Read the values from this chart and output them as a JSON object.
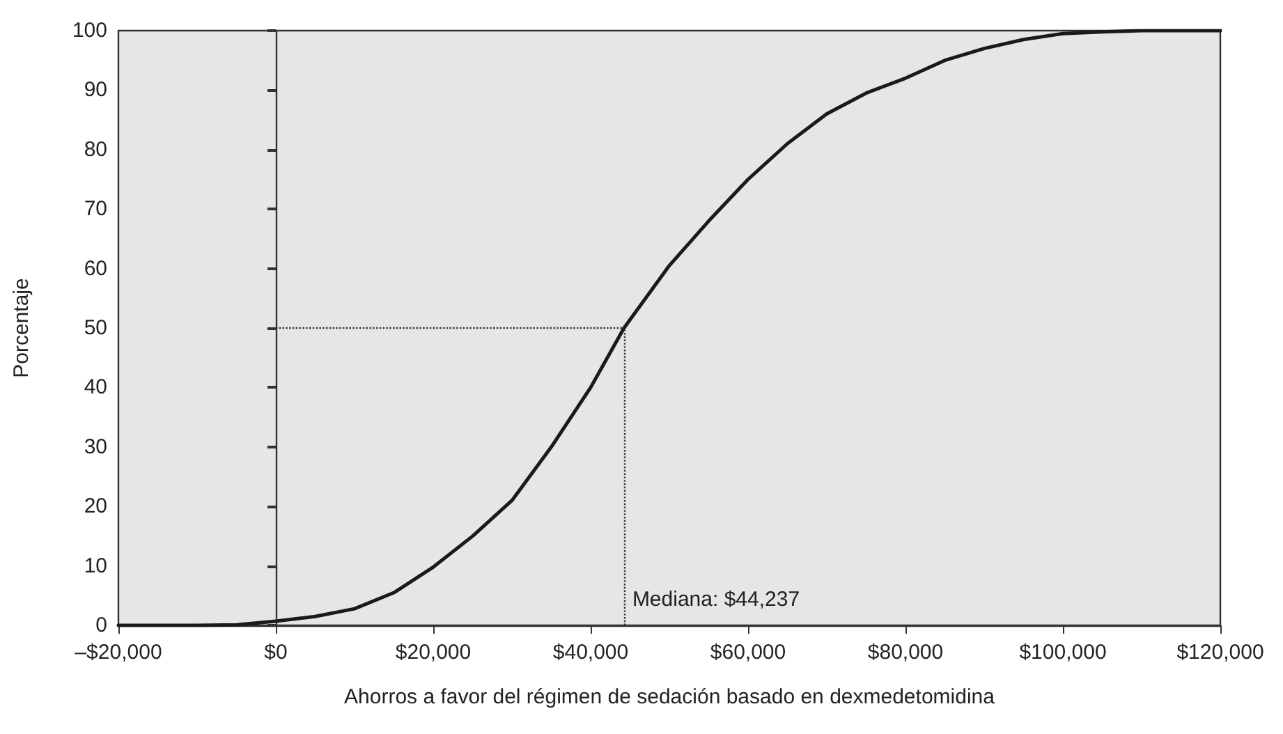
{
  "chart_data": {
    "type": "line",
    "xlabel": "Ahorros a favor del régimen de sedación basado en dexmedetomidina",
    "ylabel": "Porcentaje",
    "x": [
      -20000,
      -10000,
      -5000,
      0,
      5000,
      10000,
      15000,
      20000,
      25000,
      30000,
      35000,
      40000,
      44237,
      50000,
      55000,
      60000,
      65000,
      70000,
      75000,
      80000,
      85000,
      90000,
      95000,
      100000,
      105000,
      110000,
      115000,
      120000
    ],
    "series": [
      {
        "color": "#1a1a1a",
        "values": [
          0,
          0,
          0.1,
          0.7,
          1.5,
          2.8,
          5.5,
          9.8,
          15,
          21,
          30,
          40,
          50,
          60.5,
          68,
          75,
          81,
          86,
          89.5,
          92,
          95,
          97,
          98.5,
          99.5,
          99.8,
          100,
          100,
          100
        ]
      }
    ],
    "xlim": [
      -20000,
      120000
    ],
    "xticks": [
      {
        "value": -20000,
        "label": "–$20,000"
      },
      {
        "value": 0,
        "label": "$0"
      },
      {
        "value": 20000,
        "label": "$20,000"
      },
      {
        "value": 40000,
        "label": "$40,000"
      },
      {
        "value": 60000,
        "label": "$60,000"
      },
      {
        "value": 80000,
        "label": "$80,000"
      },
      {
        "value": 100000,
        "label": "$100,000"
      },
      {
        "value": 120000,
        "label": "$120,000"
      }
    ],
    "ylim": [
      0,
      100
    ],
    "yticks": [
      0,
      10,
      20,
      30,
      40,
      50,
      60,
      70,
      80,
      90,
      100
    ],
    "ref_lines": [
      {
        "axis": "x",
        "value": 44237,
        "label": "Mediana: $44,237",
        "line_style": "dotted"
      },
      {
        "axis": "y",
        "value": 50,
        "line_style": "dotted"
      }
    ],
    "marker": "none",
    "line_style": "solid"
  }
}
